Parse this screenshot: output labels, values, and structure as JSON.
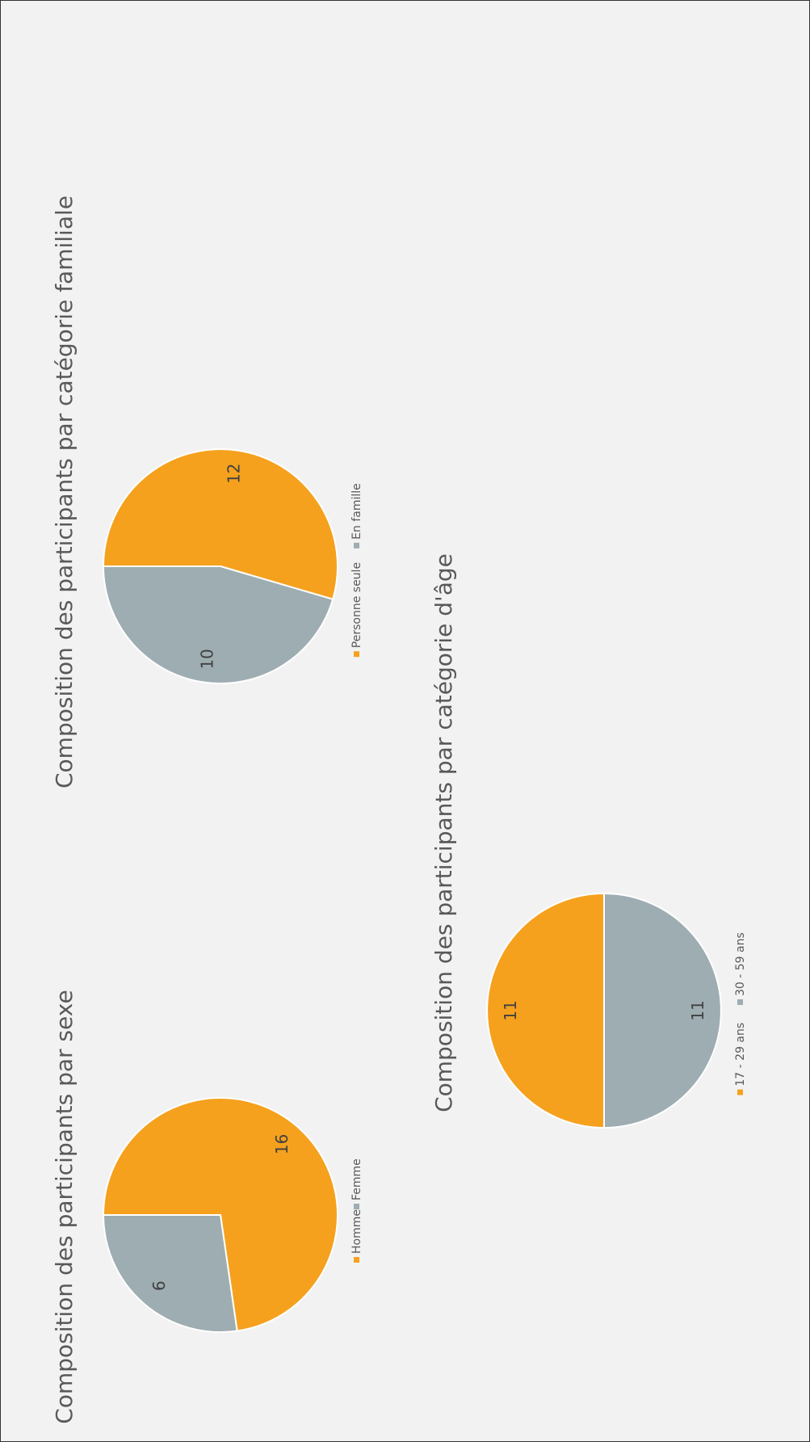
{
  "chart_data": [
    {
      "type": "pie",
      "title": "Composition des participants par sexe",
      "categories": [
        "Homme",
        "Femme"
      ],
      "values": [
        16,
        6
      ],
      "colors": [
        "#f5a11e",
        "#9eadb2"
      ],
      "legend": "bottom"
    },
    {
      "type": "pie",
      "title": "Composition des participants par catégorie familiale",
      "categories": [
        "Personne seule",
        "En famille"
      ],
      "values": [
        12,
        10
      ],
      "colors": [
        "#f5a11e",
        "#9eadb2"
      ],
      "legend": "bottom"
    },
    {
      "type": "pie",
      "title": "Composition des participants par catégorie d'âge",
      "categories": [
        "17 - 29 ans",
        "30 - 59 ans"
      ],
      "values": [
        11,
        11
      ],
      "colors": [
        "#f5a11e",
        "#9eadb2"
      ],
      "legend": "bottom"
    }
  ]
}
